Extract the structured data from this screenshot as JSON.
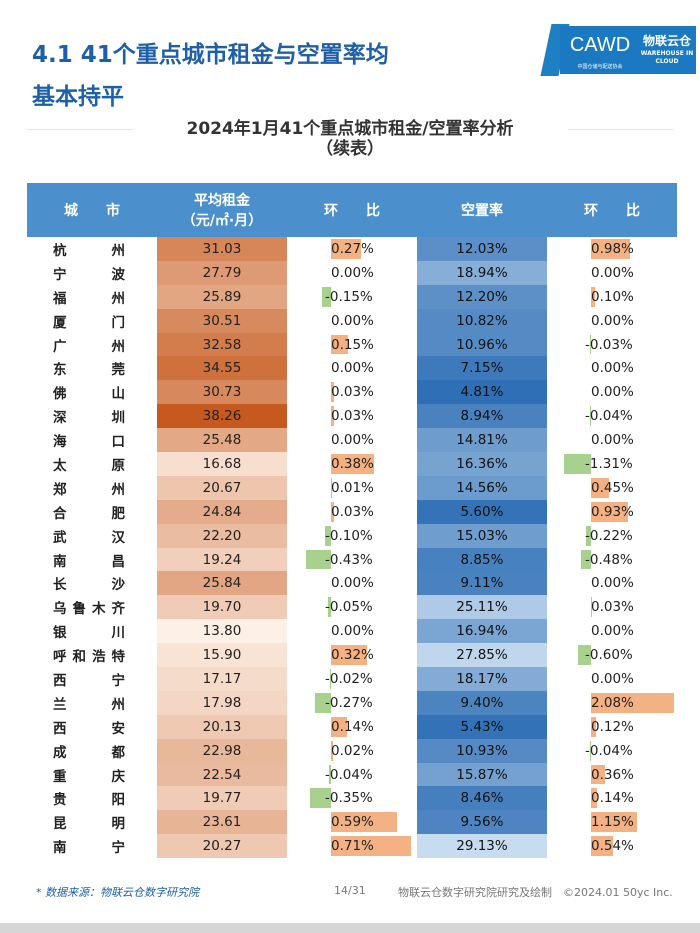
{
  "header": {
    "title_line1": "4.1 41个重点城市租金与空置率均",
    "title_line2": "基本持平",
    "logo_cawd": "CAWD",
    "logo_cawd_sub": "中国仓储与配送协会",
    "logo_wc": "物联云仓",
    "logo_wc_sub": "WAREHOUSE IN CLOUD"
  },
  "table": {
    "title_line1": "2024年1月41个重点城市租金/空置率分析",
    "title_line2": "（续表）",
    "headers": {
      "city": "城　　市",
      "rent_line1": "平均租金",
      "rent_line2": "（元/㎡·月）",
      "rent_mom": "环　　比",
      "vacancy": "空置率",
      "vac_mom": "环　　比"
    },
    "rows": [
      {
        "city": [
          "杭",
          "州"
        ],
        "rent": "31.03",
        "rent_mom": "0.27%",
        "rent_mom_v": 0.27,
        "vacancy": "12.03%",
        "vacancy_v": 12.03,
        "vac_mom": "0.98%",
        "vac_mom_v": 0.98
      },
      {
        "city": [
          "宁",
          "波"
        ],
        "rent": "27.79",
        "rent_mom": "0.00%",
        "rent_mom_v": 0,
        "vacancy": "18.94%",
        "vacancy_v": 18.94,
        "vac_mom": "0.00%",
        "vac_mom_v": 0
      },
      {
        "city": [
          "福",
          "州"
        ],
        "rent": "25.89",
        "rent_mom": "-0.15%",
        "rent_mom_v": -0.15,
        "vacancy": "12.20%",
        "vacancy_v": 12.2,
        "vac_mom": "0.10%",
        "vac_mom_v": 0.1
      },
      {
        "city": [
          "厦",
          "门"
        ],
        "rent": "30.51",
        "rent_mom": "0.00%",
        "rent_mom_v": 0,
        "vacancy": "10.82%",
        "vacancy_v": 10.82,
        "vac_mom": "0.00%",
        "vac_mom_v": 0
      },
      {
        "city": [
          "广",
          "州"
        ],
        "rent": "32.58",
        "rent_mom": "0.15%",
        "rent_mom_v": 0.15,
        "vacancy": "10.96%",
        "vacancy_v": 10.96,
        "vac_mom": "-0.03%",
        "vac_mom_v": -0.03
      },
      {
        "city": [
          "东",
          "莞"
        ],
        "rent": "34.55",
        "rent_mom": "0.00%",
        "rent_mom_v": 0,
        "vacancy": "7.15%",
        "vacancy_v": 7.15,
        "vac_mom": "0.00%",
        "vac_mom_v": 0
      },
      {
        "city": [
          "佛",
          "山"
        ],
        "rent": "30.73",
        "rent_mom": "0.03%",
        "rent_mom_v": 0.03,
        "vacancy": "4.81%",
        "vacancy_v": 4.81,
        "vac_mom": "0.00%",
        "vac_mom_v": 0
      },
      {
        "city": [
          "深",
          "圳"
        ],
        "rent": "38.26",
        "rent_mom": "0.03%",
        "rent_mom_v": 0.03,
        "vacancy": "8.94%",
        "vacancy_v": 8.94,
        "vac_mom": "-0.04%",
        "vac_mom_v": -0.04
      },
      {
        "city": [
          "海",
          "口"
        ],
        "rent": "25.48",
        "rent_mom": "0.00%",
        "rent_mom_v": 0,
        "vacancy": "14.81%",
        "vacancy_v": 14.81,
        "vac_mom": "0.00%",
        "vac_mom_v": 0
      },
      {
        "city": [
          "太",
          "原"
        ],
        "rent": "16.68",
        "rent_mom": "0.38%",
        "rent_mom_v": 0.38,
        "vacancy": "16.36%",
        "vacancy_v": 16.36,
        "vac_mom": "-1.31%",
        "vac_mom_v": -1.31
      },
      {
        "city": [
          "郑",
          "州"
        ],
        "rent": "20.67",
        "rent_mom": "0.01%",
        "rent_mom_v": 0.01,
        "vacancy": "14.56%",
        "vacancy_v": 14.56,
        "vac_mom": "0.45%",
        "vac_mom_v": 0.45
      },
      {
        "city": [
          "合",
          "肥"
        ],
        "rent": "24.84",
        "rent_mom": "0.03%",
        "rent_mom_v": 0.03,
        "vacancy": "5.60%",
        "vacancy_v": 5.6,
        "vac_mom": "0.93%",
        "vac_mom_v": 0.93
      },
      {
        "city": [
          "武",
          "汉"
        ],
        "rent": "22.20",
        "rent_mom": "-0.10%",
        "rent_mom_v": -0.1,
        "vacancy": "15.03%",
        "vacancy_v": 15.03,
        "vac_mom": "-0.22%",
        "vac_mom_v": -0.22
      },
      {
        "city": [
          "南",
          "昌"
        ],
        "rent": "19.24",
        "rent_mom": "-0.43%",
        "rent_mom_v": -0.43,
        "vacancy": "8.85%",
        "vacancy_v": 8.85,
        "vac_mom": "-0.48%",
        "vac_mom_v": -0.48
      },
      {
        "city": [
          "长",
          "沙"
        ],
        "rent": "25.84",
        "rent_mom": "0.00%",
        "rent_mom_v": 0,
        "vacancy": "9.11%",
        "vacancy_v": 9.11,
        "vac_mom": "0.00%",
        "vac_mom_v": 0
      },
      {
        "city": [
          "乌",
          "鲁",
          "木",
          "齐"
        ],
        "rent": "19.70",
        "rent_mom": "-0.05%",
        "rent_mom_v": -0.05,
        "vacancy": "25.11%",
        "vacancy_v": 25.11,
        "vac_mom": "0.03%",
        "vac_mom_v": 0.03
      },
      {
        "city": [
          "银",
          "川"
        ],
        "rent": "13.80",
        "rent_mom": "0.00%",
        "rent_mom_v": 0,
        "vacancy": "16.94%",
        "vacancy_v": 16.94,
        "vac_mom": "0.00%",
        "vac_mom_v": 0
      },
      {
        "city": [
          "呼",
          "和",
          "浩",
          "特"
        ],
        "rent": "15.90",
        "rent_mom": "0.32%",
        "rent_mom_v": 0.32,
        "vacancy": "27.85%",
        "vacancy_v": 27.85,
        "vac_mom": "-0.60%",
        "vac_mom_v": -0.6
      },
      {
        "city": [
          "西",
          "宁"
        ],
        "rent": "17.17",
        "rent_mom": "-0.02%",
        "rent_mom_v": -0.02,
        "vacancy": "18.17%",
        "vacancy_v": 18.17,
        "vac_mom": "0.00%",
        "vac_mom_v": 0
      },
      {
        "city": [
          "兰",
          "州"
        ],
        "rent": "17.98",
        "rent_mom": "-0.27%",
        "rent_mom_v": -0.27,
        "vacancy": "9.40%",
        "vacancy_v": 9.4,
        "vac_mom": "2.08%",
        "vac_mom_v": 2.08
      },
      {
        "city": [
          "西",
          "安"
        ],
        "rent": "20.13",
        "rent_mom": "0.14%",
        "rent_mom_v": 0.14,
        "vacancy": "5.43%",
        "vacancy_v": 5.43,
        "vac_mom": "0.12%",
        "vac_mom_v": 0.12
      },
      {
        "city": [
          "成",
          "都"
        ],
        "rent": "22.98",
        "rent_mom": "0.02%",
        "rent_mom_v": 0.02,
        "vacancy": "10.93%",
        "vacancy_v": 10.93,
        "vac_mom": "-0.04%",
        "vac_mom_v": -0.04
      },
      {
        "city": [
          "重",
          "庆"
        ],
        "rent": "22.54",
        "rent_mom": "-0.04%",
        "rent_mom_v": -0.04,
        "vacancy": "15.87%",
        "vacancy_v": 15.87,
        "vac_mom": "0.36%",
        "vac_mom_v": 0.36
      },
      {
        "city": [
          "贵",
          "阳"
        ],
        "rent": "19.77",
        "rent_mom": "-0.35%",
        "rent_mom_v": -0.35,
        "vacancy": "8.46%",
        "vacancy_v": 8.46,
        "vac_mom": "0.14%",
        "vac_mom_v": 0.14
      },
      {
        "city": [
          "昆",
          "明"
        ],
        "rent": "23.61",
        "rent_mom": "0.59%",
        "rent_mom_v": 0.59,
        "vacancy": "9.56%",
        "vacancy_v": 9.56,
        "vac_mom": "1.15%",
        "vac_mom_v": 1.15
      },
      {
        "city": [
          "南",
          "宁"
        ],
        "rent": "20.27",
        "rent_mom": "0.71%",
        "rent_mom_v": 0.71,
        "vacancy": "29.13%",
        "vacancy_v": 29.13,
        "vac_mom": "0.54%",
        "vac_mom_v": 0.54
      }
    ]
  },
  "colors": {
    "header_bg": "#4c8fcd",
    "rent_high": "#c65a1e",
    "rent_low": "#fdf0e6",
    "vac_high": "#c7dcf0",
    "vac_low": "#2f6fb5",
    "bar_positive": "#f4b183",
    "bar_negative": "#a9d18e"
  },
  "footer": {
    "source": "* 数据来源：物联云仓数字研究院",
    "page": "14/31",
    "copyright": "物联云仓数字研究院研究及绘制　©2024.01 50yc Inc."
  }
}
